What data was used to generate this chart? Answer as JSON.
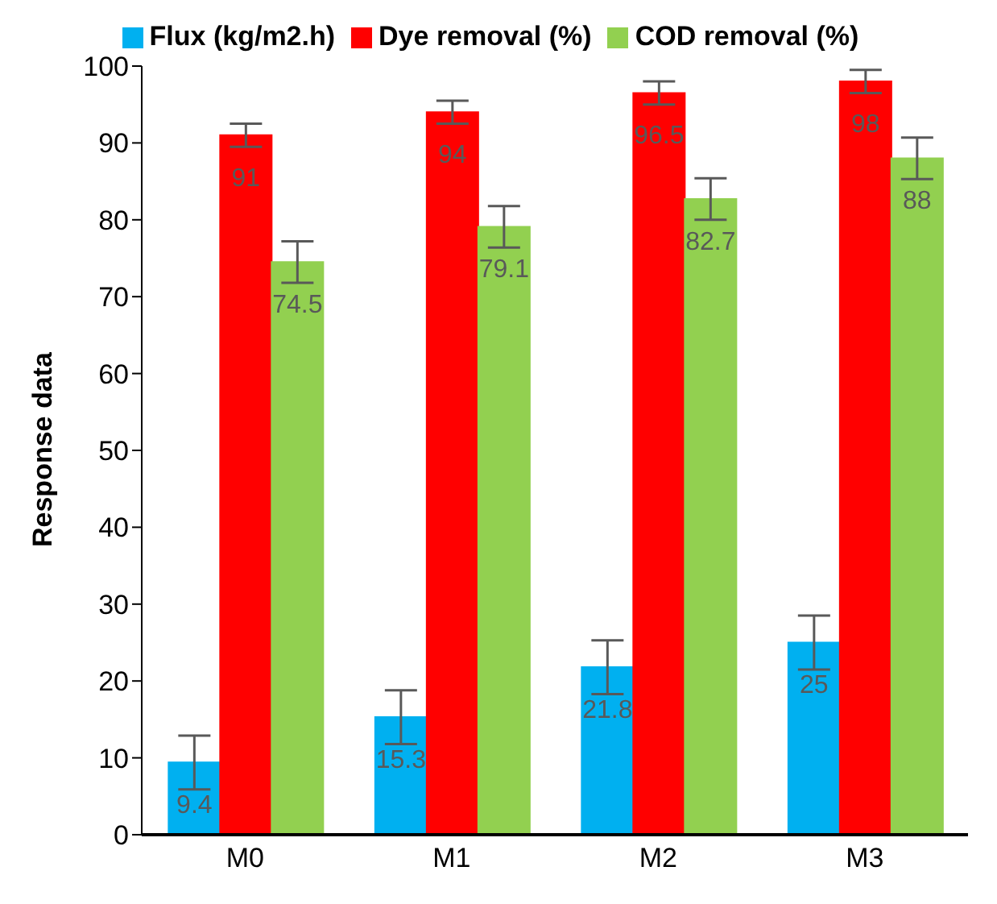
{
  "chart_data": {
    "type": "bar",
    "ylabel": "Response data",
    "categories": [
      "M0",
      "M1",
      "M2",
      "M3"
    ],
    "series": [
      {
        "name": "Flux (kg/m2.h)",
        "color": "#00b0f0",
        "values": [
          9.4,
          15.3,
          21.8,
          25
        ],
        "errors": [
          3.5,
          3.5,
          3.5,
          3.5
        ]
      },
      {
        "name": "Dye removal (%)",
        "color": "#ff0000",
        "values": [
          91,
          94,
          96.5,
          98
        ],
        "errors": [
          1.5,
          1.5,
          1.5,
          1.5
        ]
      },
      {
        "name": "COD removal (%)",
        "color": "#92d050",
        "values": [
          74.5,
          79.1,
          82.7,
          88
        ],
        "errors": [
          2.7,
          2.7,
          2.7,
          2.7
        ]
      }
    ],
    "ylim": [
      0,
      100
    ],
    "yticks": [
      0,
      10,
      20,
      30,
      40,
      50,
      60,
      70,
      80,
      90,
      100
    ],
    "grid": false,
    "legend": "top",
    "data_labels": true
  }
}
